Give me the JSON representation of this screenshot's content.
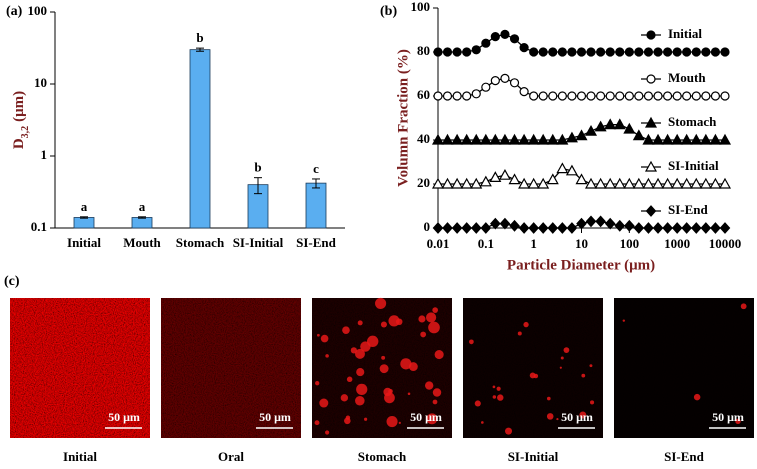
{
  "chart_data": [
    {
      "type": "bar",
      "panel_label": "(a)",
      "ylabel": {
        "main": "D",
        "sub": "3,2",
        "unit": "(μm)"
      },
      "categories": [
        "Initial",
        "Mouth",
        "Stomach",
        "SI-Initial",
        "SI-End"
      ],
      "values": [
        0.14,
        0.14,
        30,
        0.4,
        0.42
      ],
      "errors": [
        0.003,
        0.003,
        1.5,
        0.1,
        0.06
      ],
      "annotations": [
        "a",
        "a",
        "b",
        "b",
        "c"
      ],
      "color": "#5aaef0",
      "log_y": true,
      "ylim": [
        0.1,
        100
      ],
      "yticks": [
        0.1,
        1,
        10,
        100
      ]
    },
    {
      "type": "line",
      "panel_label": "(b)",
      "xlabel": "Particle Diameter (μm)",
      "ylabel": "Volumn Fraction (%)",
      "x": [
        0.01,
        0.0158,
        0.0251,
        0.0398,
        0.0631,
        0.1,
        0.158,
        0.251,
        0.398,
        0.631,
        1,
        1.58,
        2.51,
        3.98,
        6.31,
        10,
        15.8,
        25.1,
        39.8,
        63.1,
        100,
        158,
        251,
        398,
        631,
        1000,
        1580,
        2510,
        3980,
        6310,
        10000
      ],
      "log_x": true,
      "xlim": [
        0.01,
        10000
      ],
      "xticks": [
        0.01,
        0.1,
        1,
        10,
        100,
        1000,
        10000
      ],
      "ylim": [
        0,
        100
      ],
      "yticks": [
        0,
        20,
        40,
        60,
        80,
        100
      ],
      "series": [
        {
          "name": "Initial",
          "color": "#000000",
          "marker": "circle",
          "values": [
            80,
            80,
            80,
            80,
            81,
            84,
            87,
            88,
            86,
            82,
            80,
            80,
            80,
            80,
            80,
            80,
            80,
            80,
            80,
            80,
            80,
            80,
            80,
            80,
            80,
            80,
            80,
            80,
            80,
            80,
            80
          ]
        },
        {
          "name": "Mouth",
          "color": "#000000",
          "marker": "circle-open",
          "values": [
            60,
            60,
            60,
            60,
            61,
            64,
            67,
            68,
            66,
            62,
            60,
            60,
            60,
            60,
            60,
            60,
            60,
            60,
            60,
            60,
            60,
            60,
            60,
            60,
            60,
            60,
            60,
            60,
            60,
            60,
            60
          ]
        },
        {
          "name": "Stomach",
          "color": "#000000",
          "marker": "triangle",
          "values": [
            40,
            40,
            40,
            40,
            40,
            40,
            40,
            40,
            40,
            40,
            40,
            40,
            40,
            40,
            41,
            42,
            44,
            46,
            47,
            47,
            45,
            42,
            40,
            40,
            40,
            40,
            40,
            40,
            40,
            40,
            40
          ]
        },
        {
          "name": "SI-Initial",
          "color": "#000000",
          "marker": "triangle-open",
          "values": [
            20,
            20,
            20,
            20,
            20,
            21,
            23,
            24,
            22,
            20,
            20,
            20,
            22,
            27,
            26,
            22,
            20,
            20,
            20,
            20,
            20,
            20,
            20,
            20,
            20,
            20,
            20,
            20,
            20,
            20,
            20
          ]
        },
        {
          "name": "SI-End",
          "color": "#000000",
          "marker": "diamond",
          "values": [
            0,
            0,
            0,
            0,
            0,
            0,
            2,
            2,
            1,
            0,
            0,
            0,
            0,
            0,
            0,
            2,
            3,
            3,
            2,
            1,
            1,
            0,
            0,
            0,
            0,
            0,
            0,
            0,
            0,
            0,
            0
          ]
        }
      ]
    }
  ],
  "panel_c": {
    "label": "(c)",
    "images": [
      {
        "caption": "Initial",
        "scale_bar": "50 μm"
      },
      {
        "caption": "Oral",
        "scale_bar": "50 μm"
      },
      {
        "caption": "Stomach",
        "scale_bar": "50 μm"
      },
      {
        "caption": "SI-Initial",
        "scale_bar": "50 μm"
      },
      {
        "caption": "SI-End",
        "scale_bar": "50 μm"
      }
    ]
  }
}
